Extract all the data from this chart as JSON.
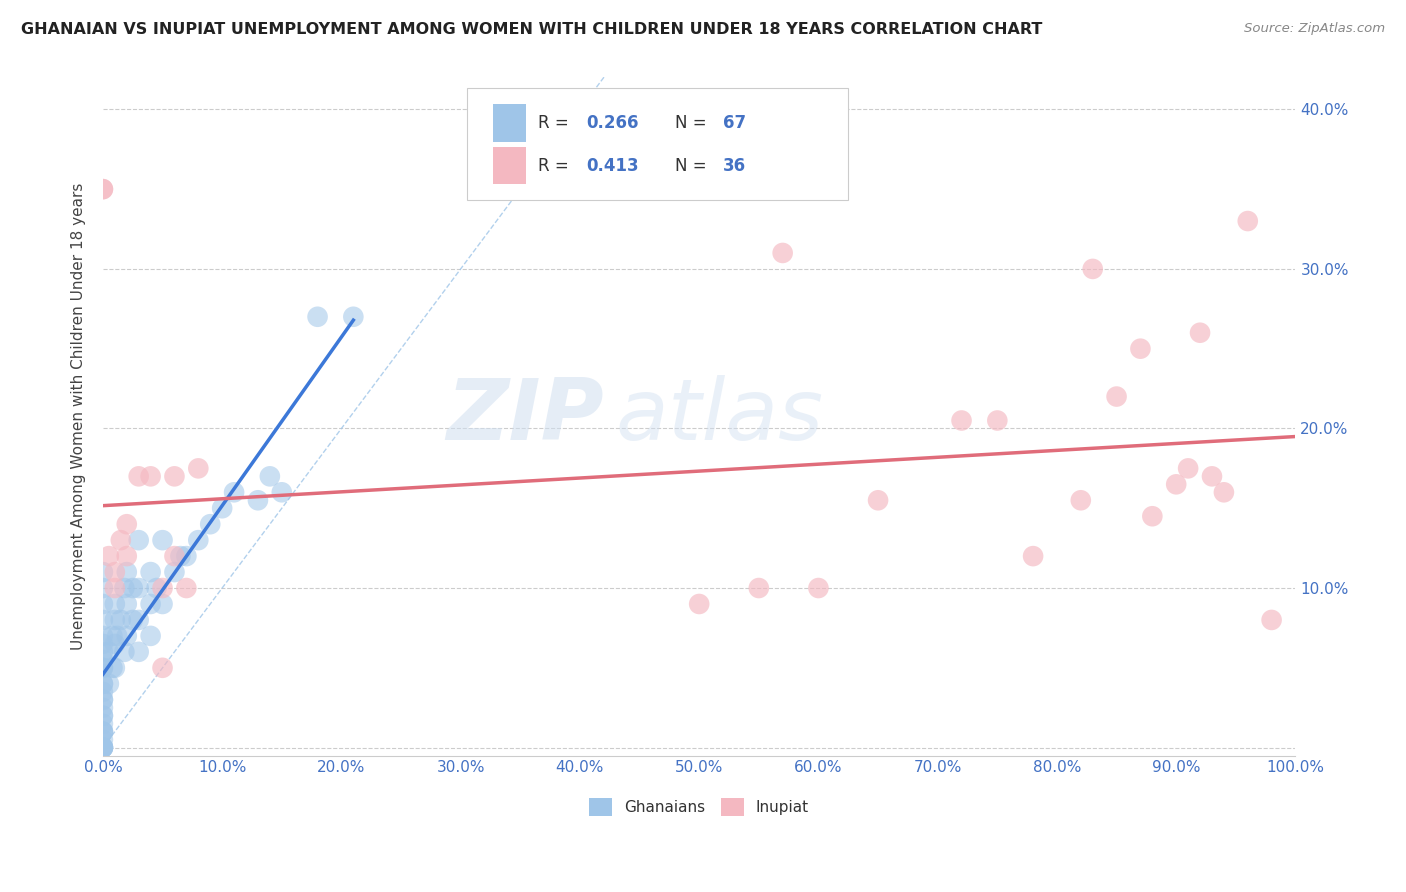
{
  "title": "GHANAIAN VS INUPIAT UNEMPLOYMENT AMONG WOMEN WITH CHILDREN UNDER 18 YEARS CORRELATION CHART",
  "source": "Source: ZipAtlas.com",
  "ylabel": "Unemployment Among Women with Children Under 18 years",
  "xlim": [
    0,
    1.0
  ],
  "ylim": [
    -0.005,
    0.42
  ],
  "xticks": [
    0.0,
    0.1,
    0.2,
    0.3,
    0.4,
    0.5,
    0.6,
    0.7,
    0.8,
    0.9,
    1.0
  ],
  "xticklabels": [
    "0.0%",
    "10.0%",
    "20.0%",
    "30.0%",
    "40.0%",
    "50.0%",
    "60.0%",
    "70.0%",
    "80.0%",
    "90.0%",
    "100.0%"
  ],
  "yticks": [
    0.0,
    0.1,
    0.2,
    0.3,
    0.4
  ],
  "yticklabels": [
    "",
    "10.0%",
    "20.0%",
    "30.0%",
    "40.0%"
  ],
  "color_blue": "#9fc5e8",
  "color_pink": "#f4b8c1",
  "color_blue_line": "#3c78d8",
  "color_pink_line": "#e06c7a",
  "color_diag": "#9fc5e8",
  "color_text_blue": "#4472c4",
  "watermark_zip": "ZIP",
  "watermark_atlas": "atlas",
  "ghanaian_x": [
    0.0,
    0.0,
    0.0,
    0.0,
    0.0,
    0.0,
    0.0,
    0.0,
    0.0,
    0.0,
    0.0,
    0.0,
    0.0,
    0.0,
    0.0,
    0.0,
    0.0,
    0.0,
    0.0,
    0.0,
    0.0,
    0.0,
    0.0,
    0.0,
    0.0,
    0.0,
    0.0,
    0.0,
    0.005,
    0.005,
    0.008,
    0.008,
    0.01,
    0.01,
    0.01,
    0.01,
    0.012,
    0.015,
    0.018,
    0.018,
    0.02,
    0.02,
    0.02,
    0.025,
    0.025,
    0.03,
    0.03,
    0.03,
    0.03,
    0.04,
    0.04,
    0.04,
    0.045,
    0.05,
    0.05,
    0.06,
    0.065,
    0.07,
    0.08,
    0.09,
    0.1,
    0.11,
    0.13,
    0.14,
    0.15,
    0.18,
    0.21
  ],
  "ghanaian_y": [
    0.0,
    0.0,
    0.0,
    0.0,
    0.0,
    0.005,
    0.01,
    0.01,
    0.01,
    0.015,
    0.02,
    0.02,
    0.025,
    0.03,
    0.03,
    0.035,
    0.04,
    0.04,
    0.05,
    0.05,
    0.055,
    0.06,
    0.065,
    0.07,
    0.08,
    0.09,
    0.1,
    0.11,
    0.04,
    0.06,
    0.05,
    0.07,
    0.05,
    0.065,
    0.08,
    0.09,
    0.07,
    0.08,
    0.06,
    0.1,
    0.07,
    0.09,
    0.11,
    0.08,
    0.1,
    0.06,
    0.08,
    0.1,
    0.13,
    0.07,
    0.09,
    0.11,
    0.1,
    0.09,
    0.13,
    0.11,
    0.12,
    0.12,
    0.13,
    0.14,
    0.15,
    0.16,
    0.155,
    0.17,
    0.16,
    0.27,
    0.27
  ],
  "inupiat_x": [
    0.0,
    0.0,
    0.005,
    0.01,
    0.01,
    0.015,
    0.02,
    0.02,
    0.03,
    0.04,
    0.05,
    0.05,
    0.06,
    0.06,
    0.07,
    0.08,
    0.5,
    0.55,
    0.57,
    0.6,
    0.65,
    0.72,
    0.75,
    0.78,
    0.82,
    0.83,
    0.85,
    0.87,
    0.88,
    0.9,
    0.91,
    0.92,
    0.93,
    0.94,
    0.96,
    0.98
  ],
  "inupiat_y": [
    0.35,
    0.35,
    0.12,
    0.1,
    0.11,
    0.13,
    0.12,
    0.14,
    0.17,
    0.17,
    0.05,
    0.1,
    0.17,
    0.12,
    0.1,
    0.175,
    0.09,
    0.1,
    0.31,
    0.1,
    0.155,
    0.205,
    0.205,
    0.12,
    0.155,
    0.3,
    0.22,
    0.25,
    0.145,
    0.165,
    0.175,
    0.26,
    0.17,
    0.16,
    0.33,
    0.08
  ]
}
